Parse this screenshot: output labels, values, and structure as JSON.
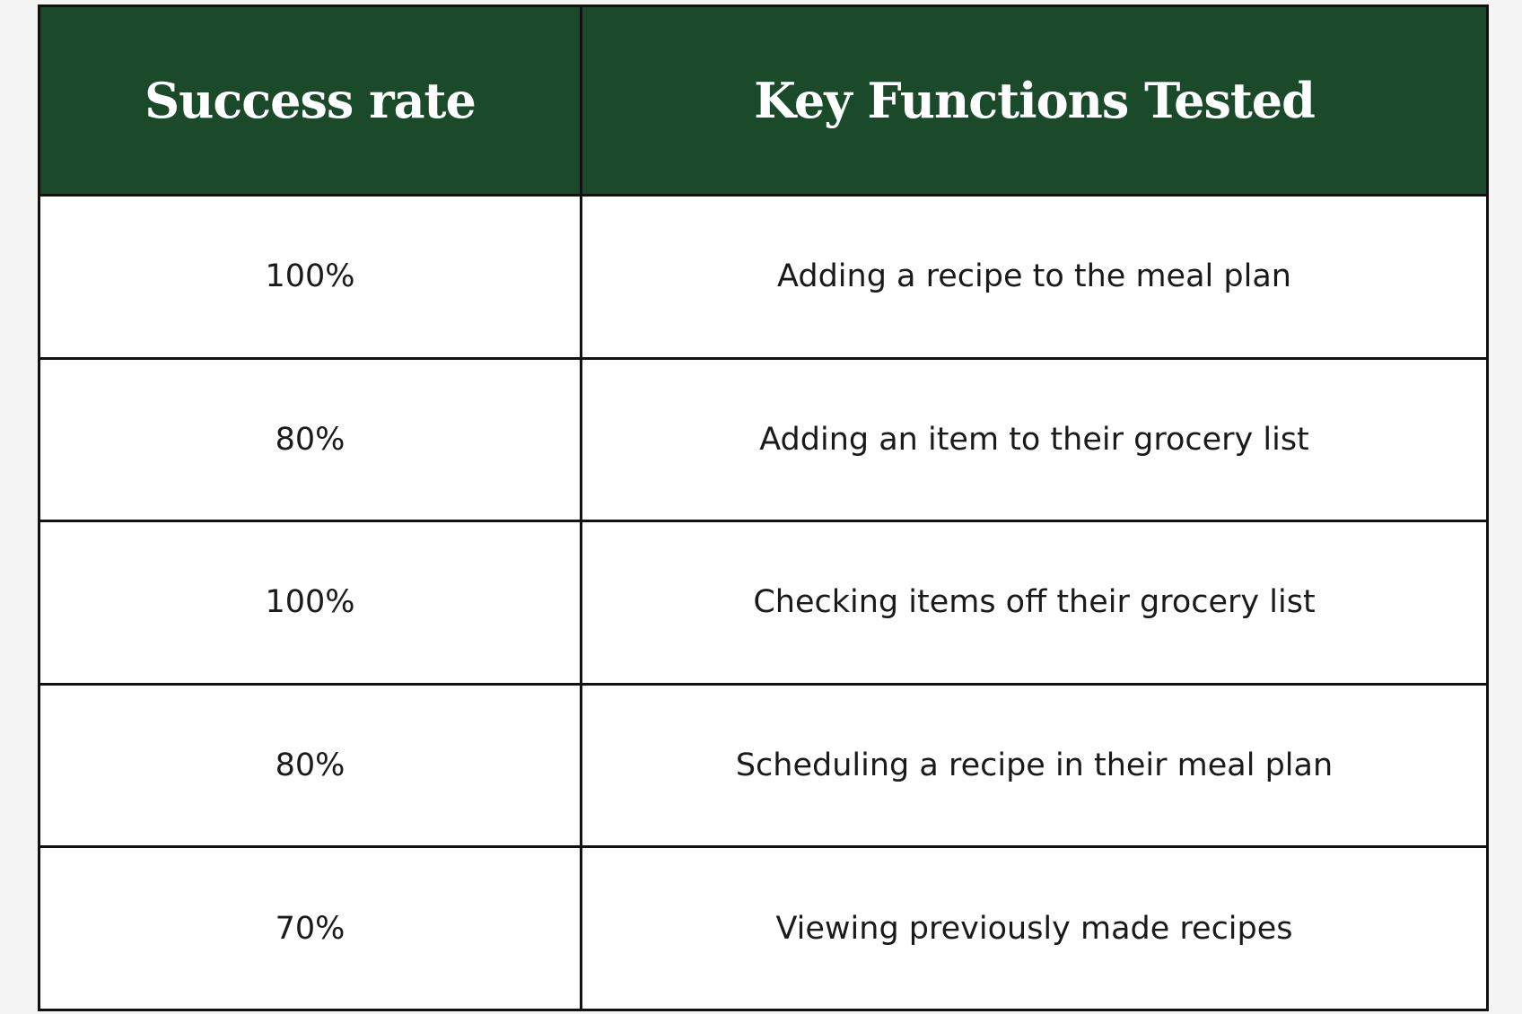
{
  "table": {
    "header": [
      "Success rate",
      "Key Functions Tested"
    ],
    "rows": [
      [
        "100%",
        "Adding a recipe to the meal plan"
      ],
      [
        "80%",
        "Adding an item to their grocery list"
      ],
      [
        "100%",
        "Checking items off their grocery list"
      ],
      [
        "80%",
        "Scheduling a recipe in their meal plan"
      ],
      [
        "70%",
        "Viewing previously made recipes"
      ]
    ]
  }
}
